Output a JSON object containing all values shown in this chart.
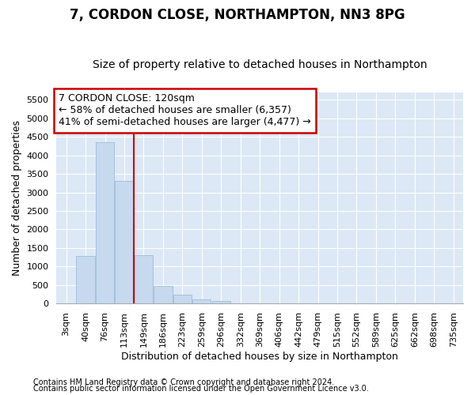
{
  "title": "7, CORDON CLOSE, NORTHAMPTON, NN3 8PG",
  "subtitle": "Size of property relative to detached houses in Northampton",
  "xlabel": "Distribution of detached houses by size in Northampton",
  "ylabel": "Number of detached properties",
  "footnote1": "Contains HM Land Registry data © Crown copyright and database right 2024.",
  "footnote2": "Contains public sector information licensed under the Open Government Licence v3.0.",
  "annotation_title": "7 CORDON CLOSE: 120sqm",
  "annotation_line1": "← 58% of detached houses are smaller (6,357)",
  "annotation_line2": "41% of semi-detached houses are larger (4,477) →",
  "bar_color": "#c6d9ee",
  "bar_edge_color": "#9dbdd8",
  "vline_color": "#cc0000",
  "background_color": "#dce8f5",
  "grid_color": "#ffffff",
  "categories": [
    "3sqm",
    "40sqm",
    "76sqm",
    "113sqm",
    "149sqm",
    "186sqm",
    "223sqm",
    "259sqm",
    "296sqm",
    "332sqm",
    "369sqm",
    "406sqm",
    "442sqm",
    "479sqm",
    "515sqm",
    "552sqm",
    "589sqm",
    "625sqm",
    "662sqm",
    "698sqm",
    "735sqm"
  ],
  "values": [
    0,
    1280,
    4350,
    3300,
    1300,
    480,
    240,
    100,
    60,
    0,
    0,
    0,
    0,
    0,
    0,
    0,
    0,
    0,
    0,
    0,
    0
  ],
  "ylim": [
    0,
    5700
  ],
  "yticks": [
    0,
    500,
    1000,
    1500,
    2000,
    2500,
    3000,
    3500,
    4000,
    4500,
    5000,
    5500
  ],
  "vline_x": 3.5,
  "title_fontsize": 12,
  "subtitle_fontsize": 10,
  "tick_fontsize": 8,
  "ylabel_fontsize": 9,
  "xlabel_fontsize": 9,
  "annotation_fontsize": 9,
  "footnote_fontsize": 7
}
